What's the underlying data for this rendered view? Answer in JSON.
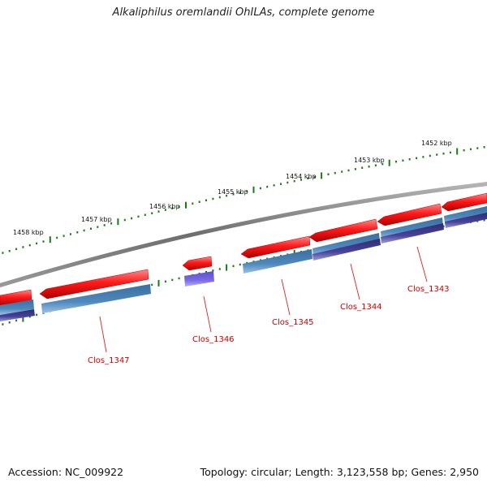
{
  "title": "Alkaliphilus oremlandii OhILAs, complete genome",
  "footer": {
    "accession": "Accession: NC_009922",
    "summary": "Topology: circular; Length: 3,123,558 bp; Genes: 2,950"
  },
  "scale_labels": [
    "1452 kbp",
    "1453 kbp",
    "1454 kbp",
    "1455 kbp",
    "1456 kbp",
    "1457 kbp",
    "1458 kbp"
  ],
  "gene_labels": [
    "Clos_1343",
    "Clos_1344",
    "Clos_1345",
    "Clos_1346",
    "Clos_1347"
  ],
  "colors": {
    "backbone": "#7a7a7a",
    "cds_red": "#ee1111",
    "feature_blue": "#3f7bb0",
    "feature_violet": "#7766dd",
    "feature_navy": "#3d3a8a",
    "ticks": "#1a7a1a",
    "label_red": "#cc0000"
  }
}
